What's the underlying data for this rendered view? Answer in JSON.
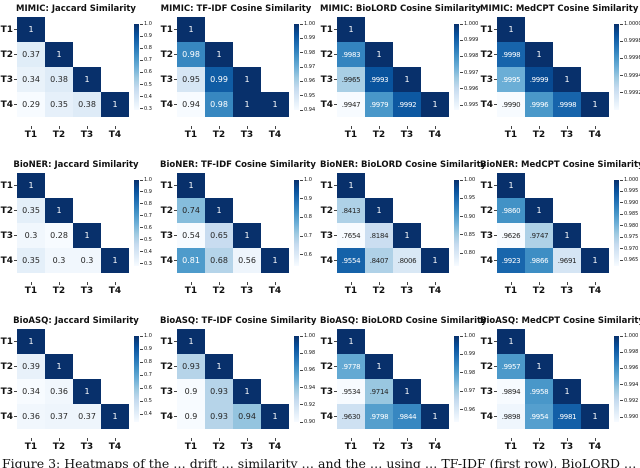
{
  "figure": {
    "caption": "Figure 3: Heatmaps of the … drift … similarity … and the … using … TF-IDF (first row), BioLORD …",
    "axis_ticks": [
      "T1",
      "T2",
      "T3",
      "T4"
    ],
    "colormap": "Blues",
    "colors": {
      "background": "#ffffff",
      "cmap_light_end": "#f7fbff",
      "cmap_dark_end": "#08306b",
      "annot_dark": "#262626",
      "annot_light": "#ffffff"
    }
  },
  "chart_data": [
    {
      "type": "heatmap",
      "title": "MIMIC: Jaccard Similarity",
      "categories": [
        "T1",
        "T2",
        "T3",
        "T4"
      ],
      "values": [
        [
          1
        ],
        [
          0.37,
          1
        ],
        [
          0.34,
          0.38,
          1
        ],
        [
          0.29,
          0.35,
          0.38,
          1
        ]
      ],
      "cell_labels": [
        [
          "1"
        ],
        [
          "0.37",
          "1"
        ],
        [
          "0.34",
          "0.38",
          "1"
        ],
        [
          "0.29",
          "0.35",
          "0.38",
          "1"
        ]
      ],
      "colorbar_ticks": [
        "1.0",
        "0.9",
        "0.8",
        "0.7",
        "0.6",
        "0.5",
        "0.4",
        "0.3"
      ],
      "vmin": 0.29,
      "vmax": 1
    },
    {
      "type": "heatmap",
      "title": "MIMIC: TF-IDF Cosine Similarity",
      "categories": [
        "T1",
        "T2",
        "T3",
        "T4"
      ],
      "values": [
        [
          1
        ],
        [
          0.98,
          1
        ],
        [
          0.95,
          0.99,
          1
        ],
        [
          0.94,
          0.98,
          1,
          1
        ]
      ],
      "cell_labels": [
        [
          "1"
        ],
        [
          "0.98",
          "1"
        ],
        [
          "0.95",
          "0.99",
          "1"
        ],
        [
          "0.94",
          "0.98",
          "1",
          "1"
        ]
      ],
      "colorbar_ticks": [
        "1.00",
        "0.99",
        "0.98",
        "0.97",
        "0.96",
        "0.95",
        "0.94"
      ],
      "vmin": 0.94,
      "vmax": 1
    },
    {
      "type": "heatmap",
      "title": "MIMIC: BioLORD Cosine Similarity",
      "categories": [
        "T1",
        "T2",
        "T3",
        "T4"
      ],
      "values": [
        [
          1
        ],
        [
          0.9983,
          1
        ],
        [
          0.9965,
          0.9993,
          1
        ],
        [
          0.9947,
          0.9979,
          0.9992,
          1
        ]
      ],
      "cell_labels": [
        [
          "1"
        ],
        [
          ".9983",
          "1"
        ],
        [
          ".9965",
          ".9993",
          "1"
        ],
        [
          ".9947",
          ".9979",
          ".9992",
          "1"
        ]
      ],
      "colorbar_ticks": [
        "1.000",
        "0.999",
        "0.998",
        "0.997",
        "0.996",
        "0.995"
      ],
      "vmin": 0.9947,
      "vmax": 1
    },
    {
      "type": "heatmap",
      "title": "MIMIC: MedCPT Cosine Similarity",
      "categories": [
        "T1",
        "T2",
        "T3",
        "T4"
      ],
      "values": [
        [
          1
        ],
        [
          0.9998,
          1
        ],
        [
          0.9995,
          0.9999,
          1
        ],
        [
          0.999,
          0.9996,
          0.9998,
          1
        ]
      ],
      "cell_labels": [
        [
          "1"
        ],
        [
          ".9998",
          "1"
        ],
        [
          ".9995",
          ".9999",
          "1"
        ],
        [
          ".9990",
          ".9996",
          ".9998",
          "1"
        ]
      ],
      "colorbar_ticks": [
        "1.0000",
        "0.9998",
        "0.9996",
        "0.9994",
        "0.9992"
      ],
      "vmin": 0.999,
      "vmax": 1
    },
    {
      "type": "heatmap",
      "title": "BioNER: Jaccard Similarity",
      "categories": [
        "T1",
        "T2",
        "T3",
        "T4"
      ],
      "values": [
        [
          1
        ],
        [
          0.35,
          1
        ],
        [
          0.3,
          0.28,
          1
        ],
        [
          0.35,
          0.3,
          0.3,
          1
        ]
      ],
      "cell_labels": [
        [
          "1"
        ],
        [
          "0.35",
          "1"
        ],
        [
          "0.3",
          "0.28",
          "1"
        ],
        [
          "0.35",
          "0.3",
          "0.3",
          "1"
        ]
      ],
      "colorbar_ticks": [
        "1.0",
        "0.9",
        "0.8",
        "0.7",
        "0.6",
        "0.5",
        "0.4",
        "0.3"
      ],
      "vmin": 0.28,
      "vmax": 1
    },
    {
      "type": "heatmap",
      "title": "BioNER: TF-IDF Cosine Similarity",
      "categories": [
        "T1",
        "T2",
        "T3",
        "T4"
      ],
      "values": [
        [
          1
        ],
        [
          0.74,
          1
        ],
        [
          0.54,
          0.65,
          1
        ],
        [
          0.81,
          0.68,
          0.56,
          1
        ]
      ],
      "cell_labels": [
        [
          "1"
        ],
        [
          "0.74",
          "1"
        ],
        [
          "0.54",
          "0.65",
          "1"
        ],
        [
          "0.81",
          "0.68",
          "0.56",
          "1"
        ]
      ],
      "colorbar_ticks": [
        "1.0",
        "0.9",
        "0.8",
        "0.7",
        "0.6"
      ],
      "vmin": 0.54,
      "vmax": 1
    },
    {
      "type": "heatmap",
      "title": "BioNER: BioLORD Cosine Similarity",
      "categories": [
        "T1",
        "T2",
        "T3",
        "T4"
      ],
      "values": [
        [
          1
        ],
        [
          0.8413,
          1
        ],
        [
          0.7654,
          0.8184,
          1
        ],
        [
          0.9554,
          0.8407,
          0.8006,
          1
        ]
      ],
      "cell_labels": [
        [
          "1"
        ],
        [
          ".8413",
          "1"
        ],
        [
          ".7654",
          ".8184",
          "1"
        ],
        [
          ".9554",
          ".8407",
          ".8006",
          "1"
        ]
      ],
      "colorbar_ticks": [
        "1.00",
        "0.95",
        "0.90",
        "0.85",
        "0.80"
      ],
      "vmin": 0.7654,
      "vmax": 1
    },
    {
      "type": "heatmap",
      "title": "BioNER: MedCPT Cosine Similarity",
      "categories": [
        "T1",
        "T2",
        "T3",
        "T4"
      ],
      "values": [
        [
          1
        ],
        [
          0.986,
          1
        ],
        [
          0.9626,
          0.9747,
          1
        ],
        [
          0.9923,
          0.9866,
          0.9691,
          1
        ]
      ],
      "cell_labels": [
        [
          "1"
        ],
        [
          ".9860",
          "1"
        ],
        [
          ".9626",
          ".9747",
          "1"
        ],
        [
          ".9923",
          ".9866",
          ".9691",
          "1"
        ]
      ],
      "colorbar_ticks": [
        "1.000",
        "0.995",
        "0.990",
        "0.985",
        "0.980",
        "0.975",
        "0.970",
        "0.965"
      ],
      "vmin": 0.9626,
      "vmax": 1
    },
    {
      "type": "heatmap",
      "title": "BioASQ: Jaccard Similarity",
      "categories": [
        "T1",
        "T2",
        "T3",
        "T4"
      ],
      "values": [
        [
          1
        ],
        [
          0.39,
          1
        ],
        [
          0.34,
          0.36,
          1
        ],
        [
          0.36,
          0.37,
          0.37,
          1
        ]
      ],
      "cell_labels": [
        [
          "1"
        ],
        [
          "0.39",
          "1"
        ],
        [
          "0.34",
          "0.36",
          "1"
        ],
        [
          "0.36",
          "0.37",
          "0.37",
          "1"
        ]
      ],
      "colorbar_ticks": [
        "1.0",
        "0.9",
        "0.8",
        "0.7",
        "0.6",
        "0.5",
        "0.4"
      ],
      "vmin": 0.34,
      "vmax": 1
    },
    {
      "type": "heatmap",
      "title": "BioASQ: TF-IDF Cosine Similarity",
      "categories": [
        "T1",
        "T2",
        "T3",
        "T4"
      ],
      "values": [
        [
          1
        ],
        [
          0.93,
          1
        ],
        [
          0.9,
          0.93,
          1
        ],
        [
          0.9,
          0.93,
          0.94,
          1
        ]
      ],
      "cell_labels": [
        [
          "1"
        ],
        [
          "0.93",
          "1"
        ],
        [
          "0.9",
          "0.93",
          "1"
        ],
        [
          "0.9",
          "0.93",
          "0.94",
          "1"
        ]
      ],
      "colorbar_ticks": [
        "1.00",
        "0.98",
        "0.96",
        "0.94",
        "0.92",
        "0.90"
      ],
      "vmin": 0.9,
      "vmax": 1
    },
    {
      "type": "heatmap",
      "title": "BioASQ: BioLORD Cosine Similarity",
      "categories": [
        "T1",
        "T2",
        "T3",
        "T4"
      ],
      "values": [
        [
          1
        ],
        [
          0.9778,
          1
        ],
        [
          0.9534,
          0.9714,
          1
        ],
        [
          0.963,
          0.9798,
          0.9844,
          1
        ]
      ],
      "cell_labels": [
        [
          "1"
        ],
        [
          ".9778",
          "1"
        ],
        [
          ".9534",
          ".9714",
          "1"
        ],
        [
          ".9630",
          ".9798",
          ".9844",
          "1"
        ]
      ],
      "colorbar_ticks": [
        "1.00",
        "0.99",
        "0.98",
        "0.97",
        "0.96"
      ],
      "vmin": 0.9534,
      "vmax": 1
    },
    {
      "type": "heatmap",
      "title": "BioASQ: MedCPT Cosine Similarity",
      "categories": [
        "T1",
        "T2",
        "T3",
        "T4"
      ],
      "values": [
        [
          1
        ],
        [
          0.9957,
          1
        ],
        [
          0.9894,
          0.9958,
          1
        ],
        [
          0.9898,
          0.9954,
          0.9981,
          1
        ]
      ],
      "cell_labels": [
        [
          "1"
        ],
        [
          ".9957",
          "1"
        ],
        [
          ".9894",
          ".9958",
          "1"
        ],
        [
          ".9898",
          ".9954",
          ".9981",
          "1"
        ]
      ],
      "colorbar_ticks": [
        "1.000",
        "0.998",
        "0.996",
        "0.994",
        "0.992",
        "0.990"
      ],
      "vmin": 0.9894,
      "vmax": 1
    }
  ]
}
